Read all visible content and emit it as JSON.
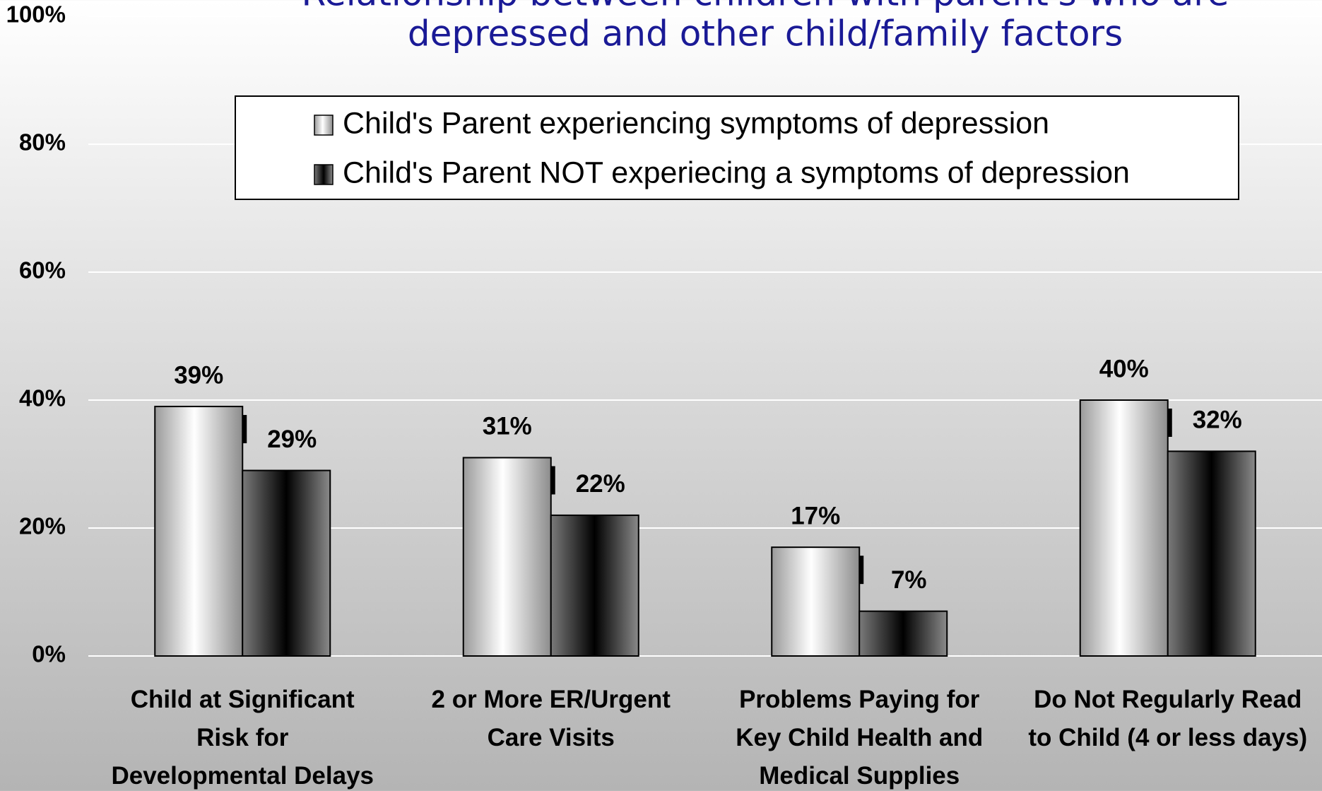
{
  "chart_data": {
    "type": "bar",
    "title": [
      "Relationship between children with parent's who are",
      "depressed and other child/family factors"
    ],
    "categories": [
      "Child at Significant\nRisk for\nDevelopmental Delays",
      "2 or More ER/Urgent\nCare Visits",
      "Problems Paying for\nKey Child Health and\nMedical Supplies",
      "Do Not Regularly Read\nto Child (4 or less days)"
    ],
    "series": [
      {
        "name": "Child's Parent experiencing symptoms of depression",
        "color": "light-gray",
        "values": [
          39,
          31,
          17,
          40
        ],
        "value_labels": [
          "39%",
          "31%",
          "17%",
          "40%"
        ]
      },
      {
        "name": "Child's Parent NOT experiecing a symptoms of depression",
        "color": "dark-gray",
        "values": [
          29,
          22,
          7,
          32
        ],
        "value_labels": [
          "29%",
          "22%",
          "7%",
          "32%"
        ]
      }
    ],
    "ylim": [
      0,
      100
    ],
    "yticks": [
      {
        "value": 0,
        "label": "0%"
      },
      {
        "value": 20,
        "label": "20%"
      },
      {
        "value": 40,
        "label": "40%"
      },
      {
        "value": 60,
        "label": "60%"
      },
      {
        "value": 80,
        "label": "80%"
      },
      {
        "value": 100,
        "label": "100%"
      }
    ],
    "grid": true,
    "legend": "top"
  }
}
